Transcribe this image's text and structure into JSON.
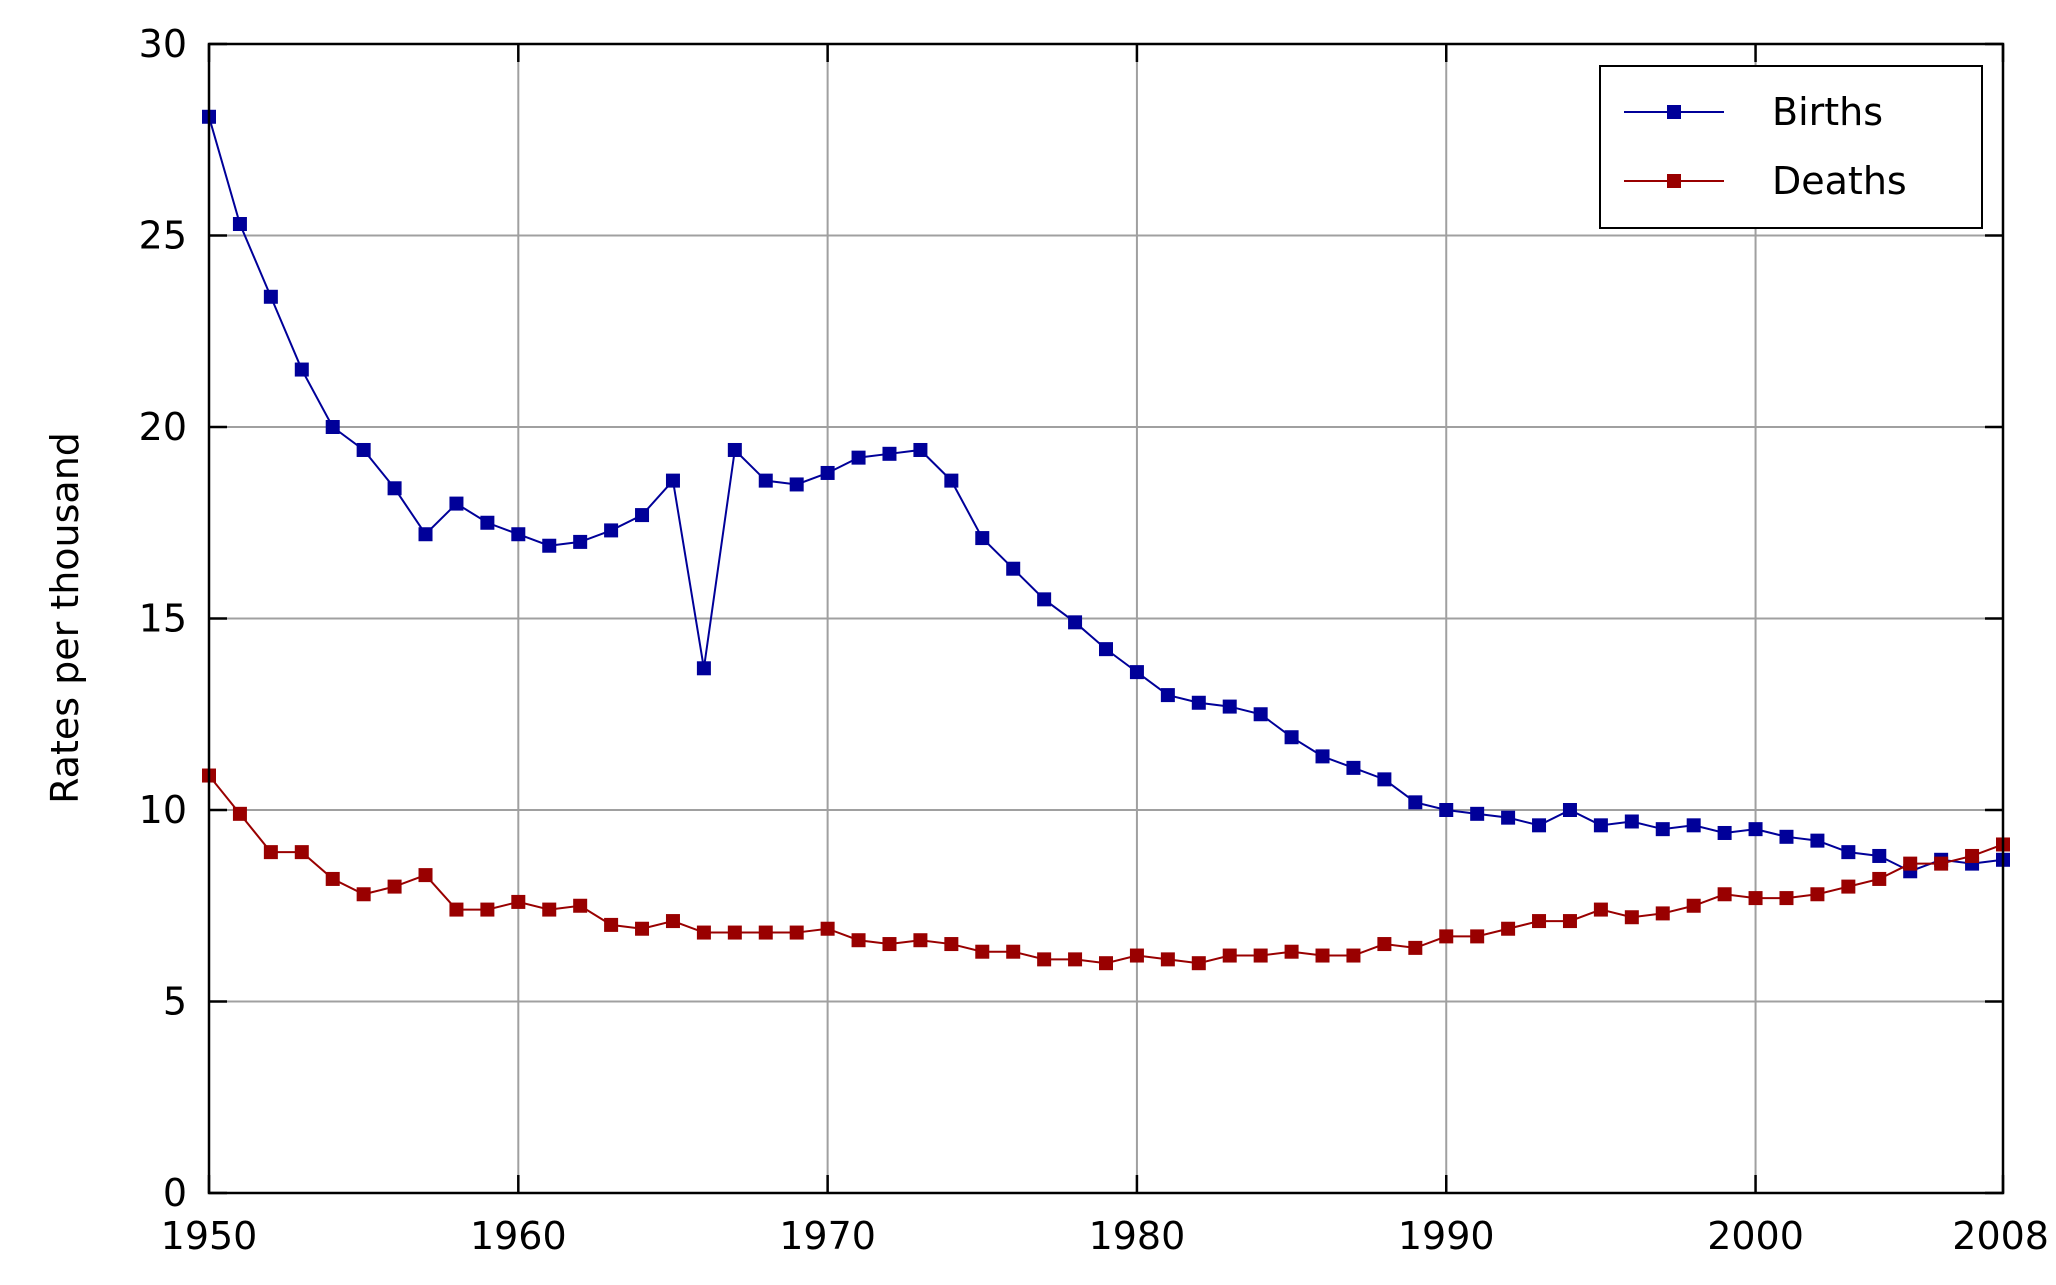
{
  "chart_data": {
    "type": "line",
    "title": "",
    "xlabel": "",
    "ylabel": "Rates per thousand",
    "xlim": [
      1950,
      2008
    ],
    "ylim": [
      0,
      30
    ],
    "xticks": [
      "1950",
      "1960",
      "1970",
      "1980",
      "1990",
      "2000",
      "2008"
    ],
    "yticks": [
      "0",
      "5",
      "10",
      "15",
      "20",
      "25",
      "30"
    ],
    "grid": true,
    "legend_position": "top-right",
    "x": [
      1950,
      1951,
      1952,
      1953,
      1954,
      1955,
      1956,
      1957,
      1958,
      1959,
      1960,
      1961,
      1962,
      1963,
      1964,
      1965,
      1966,
      1967,
      1968,
      1969,
      1970,
      1971,
      1972,
      1973,
      1974,
      1975,
      1976,
      1977,
      1978,
      1979,
      1980,
      1981,
      1982,
      1983,
      1984,
      1985,
      1986,
      1987,
      1988,
      1989,
      1990,
      1991,
      1992,
      1993,
      1994,
      1995,
      1996,
      1997,
      1998,
      1999,
      2000,
      2001,
      2002,
      2003,
      2004,
      2005,
      2006,
      2007,
      2008
    ],
    "series": [
      {
        "name": "Births",
        "color": "#000099",
        "values": [
          28.1,
          25.3,
          23.4,
          21.5,
          20.0,
          19.4,
          18.4,
          17.2,
          18.0,
          17.5,
          17.2,
          16.9,
          17.0,
          17.3,
          17.7,
          18.6,
          13.7,
          19.4,
          18.6,
          18.5,
          18.8,
          19.2,
          19.3,
          19.4,
          18.6,
          17.1,
          16.3,
          15.5,
          14.9,
          14.2,
          13.6,
          13.0,
          12.8,
          12.7,
          12.5,
          11.9,
          11.4,
          11.1,
          10.8,
          10.2,
          10.0,
          9.9,
          9.8,
          9.6,
          10.0,
          9.6,
          9.7,
          9.5,
          9.6,
          9.4,
          9.5,
          9.3,
          9.2,
          8.9,
          8.8,
          8.4,
          8.7,
          8.6,
          8.7
        ]
      },
      {
        "name": "Deaths",
        "color": "#990000",
        "values": [
          10.9,
          9.9,
          8.9,
          8.9,
          8.2,
          7.8,
          8.0,
          8.3,
          7.4,
          7.4,
          7.6,
          7.4,
          7.5,
          7.0,
          6.9,
          7.1,
          6.8,
          6.8,
          6.8,
          6.8,
          6.9,
          6.6,
          6.5,
          6.6,
          6.5,
          6.3,
          6.3,
          6.1,
          6.1,
          6.0,
          6.2,
          6.1,
          6.0,
          6.2,
          6.2,
          6.3,
          6.2,
          6.2,
          6.5,
          6.4,
          6.7,
          6.7,
          6.9,
          7.1,
          7.1,
          7.4,
          7.2,
          7.3,
          7.5,
          7.8,
          7.7,
          7.7,
          7.8,
          8.0,
          8.2,
          8.6,
          8.6,
          8.8,
          9.1
        ]
      }
    ]
  }
}
